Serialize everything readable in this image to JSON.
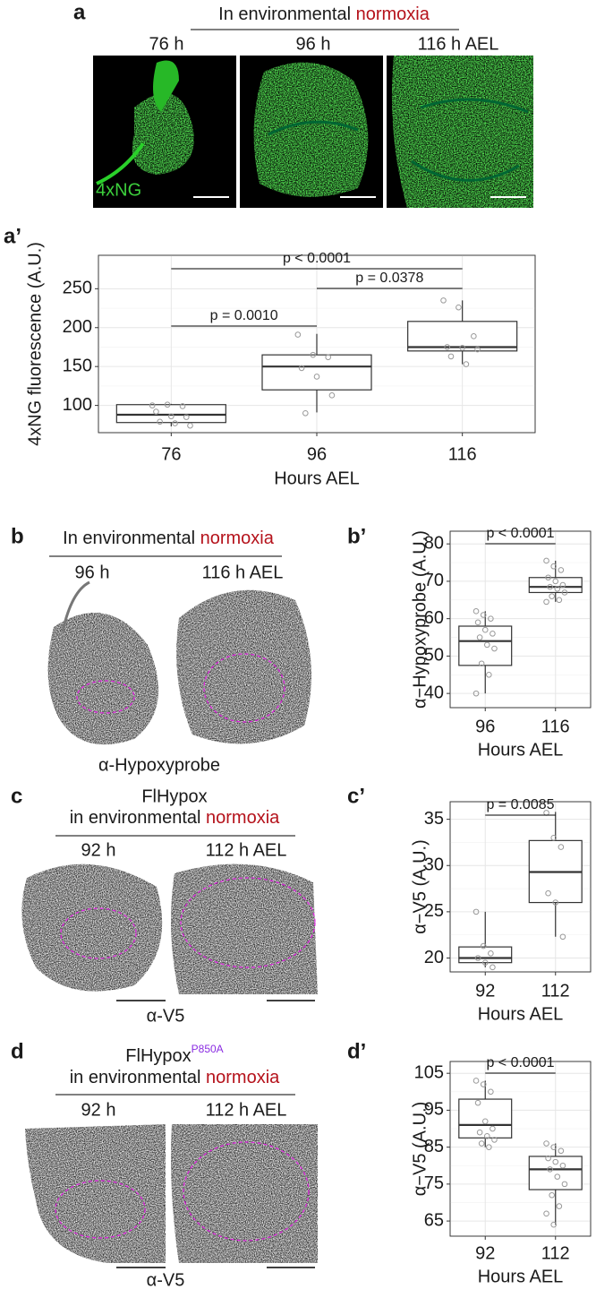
{
  "panels": {
    "a": {
      "label": "a",
      "header": [
        "In environmental ",
        "normoxia"
      ],
      "times": [
        "76 h",
        "96 h",
        "116 h AEL"
      ],
      "stain": "4xNG"
    },
    "a2": {
      "label": "a’"
    },
    "b": {
      "label": "b",
      "header": [
        "In environmental ",
        "normoxia"
      ],
      "times": [
        "96 h",
        "116 h AEL"
      ],
      "stain": "α-Hypoxyprobe"
    },
    "b2": {
      "label": "b’"
    },
    "c": {
      "label": "c",
      "title": "FlHypox",
      "header": [
        "in environmental ",
        "normoxia"
      ],
      "times": [
        "92 h",
        "112 h AEL"
      ],
      "stain": "α-V5"
    },
    "c2": {
      "label": "c’"
    },
    "d": {
      "label": "d",
      "title": "FlHypox",
      "superscript": "P850A",
      "header": [
        "in environmental ",
        "normoxia"
      ],
      "times": [
        "92 h",
        "112 h AEL"
      ],
      "stain": "α-V5"
    },
    "d2": {
      "label": "d’"
    }
  },
  "chart_data": [
    {
      "type": "box",
      "xlabel": "Hours AEL",
      "ylabel": "4xNG fluorescence (A.U.)",
      "categories": [
        "76",
        "96",
        "116"
      ],
      "boxes": [
        {
          "min": 73,
          "q1": 78,
          "median": 88,
          "q3": 101,
          "max": 102,
          "points": [
            100,
            101,
            99,
            92,
            86,
            85,
            79,
            77,
            74
          ]
        },
        {
          "min": 91,
          "q1": 120,
          "median": 150,
          "q3": 165,
          "max": 192,
          "points": [
            191,
            165,
            162,
            148,
            137,
            113,
            90
          ]
        },
        {
          "min": 153,
          "q1": 170,
          "median": 175,
          "q3": 208,
          "max": 235,
          "points": [
            235,
            226,
            189,
            175,
            174,
            172,
            163,
            153
          ]
        }
      ],
      "ylim": [
        65,
        293
      ],
      "yticks": [
        100,
        150,
        200,
        250
      ],
      "grid": true,
      "annotations": [
        {
          "text": "p < 0.0001",
          "between": [
            "76",
            "116"
          ]
        },
        {
          "text": "p = 0.0378",
          "between": [
            "96",
            "116"
          ]
        },
        {
          "text": "p = 0.0010",
          "between": [
            "76",
            "96"
          ]
        }
      ]
    },
    {
      "type": "box",
      "xlabel": "Hours AEL",
      "ylabel": "α−Hypoxyprobe (A.U.)",
      "categories": [
        "96",
        "116"
      ],
      "boxes": [
        {
          "min": 40,
          "q1": 47.5,
          "median": 54,
          "q3": 58,
          "max": 62,
          "points": [
            62,
            61,
            60,
            59,
            57,
            56,
            55,
            53,
            52,
            48,
            45,
            40
          ]
        },
        {
          "min": 64.5,
          "q1": 67,
          "median": 68.5,
          "q3": 71,
          "max": 75.5,
          "points": [
            75.5,
            74,
            73,
            71,
            70,
            69,
            68.5,
            68,
            67,
            66,
            65,
            64.5
          ]
        }
      ],
      "ylim": [
        36.2,
        83.4
      ],
      "yticks": [
        40,
        50,
        60,
        70,
        80
      ],
      "grid": true,
      "annotations": [
        {
          "text": "p < 0.0001",
          "between": [
            "96",
            "116"
          ]
        }
      ]
    },
    {
      "type": "box",
      "xlabel": "Hours AEL",
      "ylabel": "α−V5 (A.U.)",
      "categories": [
        "92",
        "112"
      ],
      "boxes": [
        {
          "min": 19,
          "q1": 19.5,
          "median": 20,
          "q3": 21.2,
          "max": 25,
          "points": [
            25,
            21.3,
            20.5,
            20,
            19.5,
            19
          ]
        },
        {
          "min": 22.3,
          "q1": 26,
          "median": 29.3,
          "q3": 32.7,
          "max": 35.8,
          "points": [
            35.7,
            33,
            32,
            27,
            26,
            22.3
          ]
        }
      ],
      "ylim": [
        18.5,
        36.9
      ],
      "yticks": [
        20,
        25,
        30,
        35
      ],
      "grid": true,
      "annotations": [
        {
          "text": "p = 0.0085",
          "between": [
            "92",
            "112"
          ]
        }
      ]
    },
    {
      "type": "box",
      "xlabel": "Hours AEL",
      "ylabel": "α−V5 (A.U.)",
      "categories": [
        "92",
        "112"
      ],
      "boxes": [
        {
          "min": 85,
          "q1": 87.5,
          "median": 91,
          "q3": 98,
          "max": 103,
          "points": [
            103,
            102,
            100,
            97,
            92,
            90,
            89,
            88,
            87,
            86,
            85
          ]
        },
        {
          "min": 64,
          "q1": 73.5,
          "median": 79,
          "q3": 82.5,
          "max": 86,
          "points": [
            86,
            85,
            84,
            82,
            81,
            80,
            79,
            77,
            75,
            72,
            69,
            67,
            64
          ]
        }
      ],
      "ylim": [
        60.9,
        108.2
      ],
      "yticks": [
        65,
        75,
        85,
        95,
        105
      ],
      "grid": true,
      "annotations": [
        {
          "text": "p < 0.0001",
          "between": [
            "92",
            "112"
          ]
        }
      ]
    }
  ]
}
